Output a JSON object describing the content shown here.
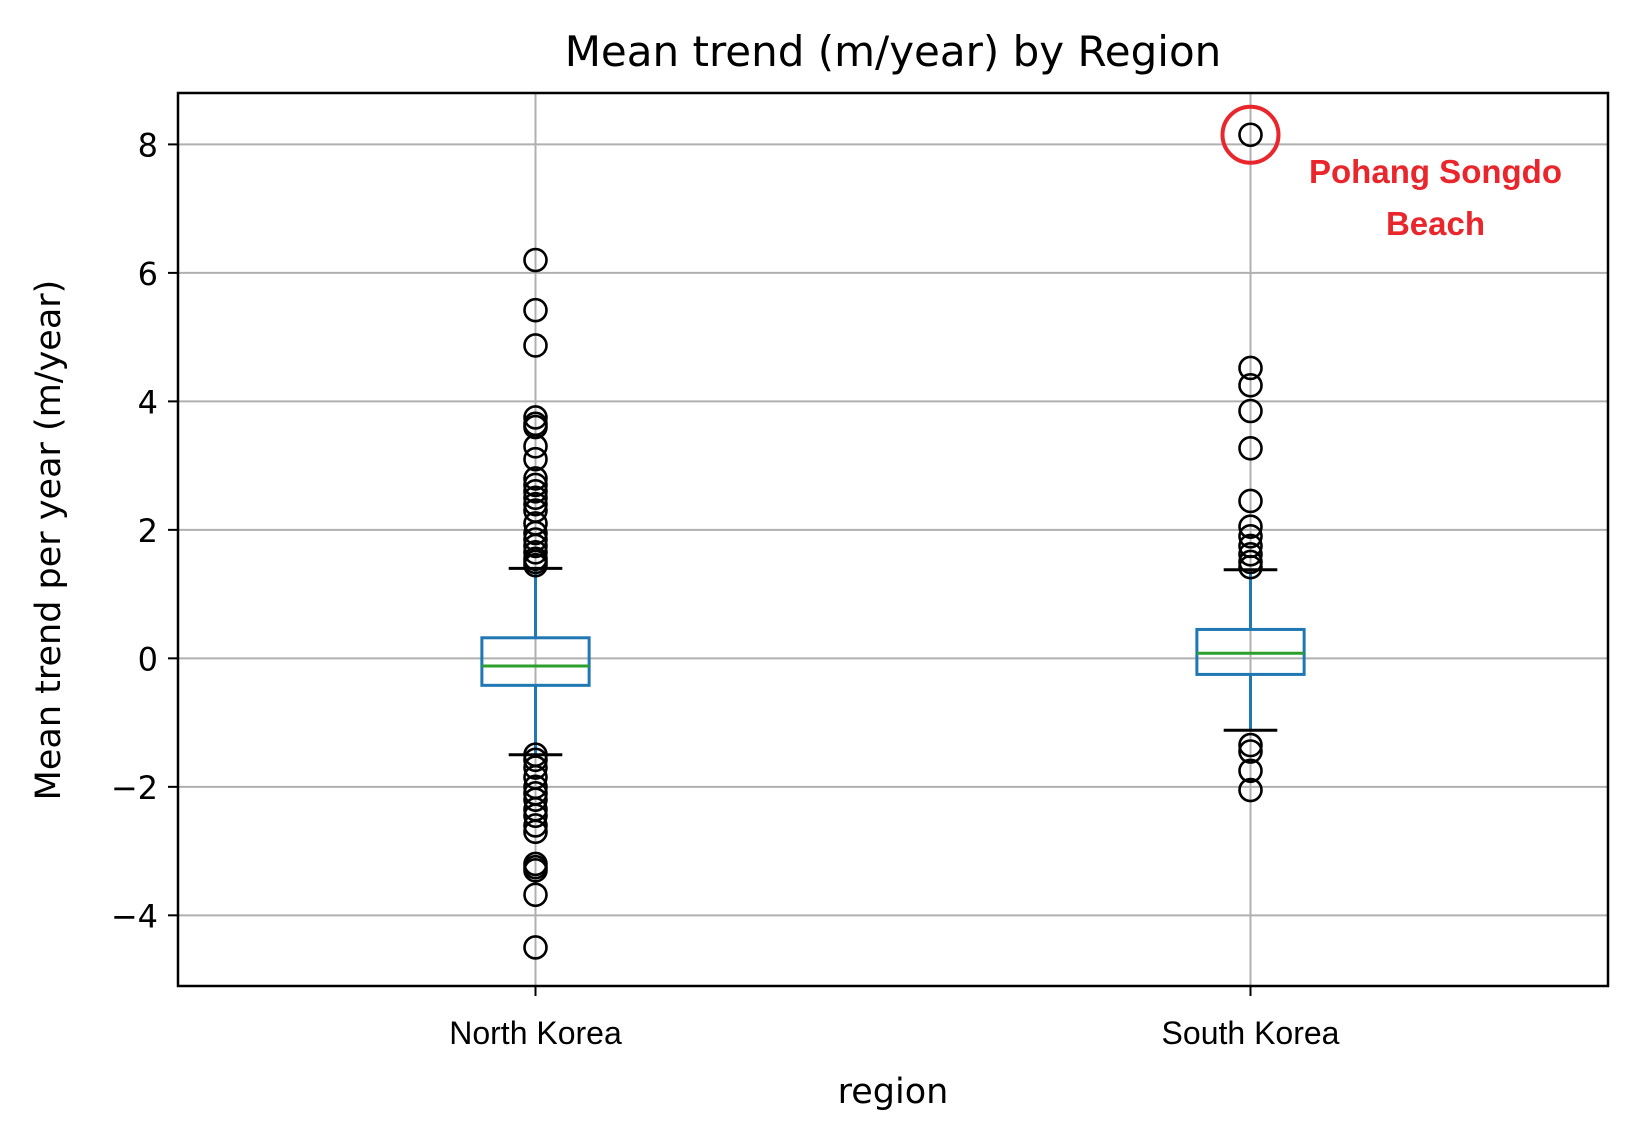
{
  "chart_data": {
    "type": "box",
    "title": "Mean trend (m/year) by Region",
    "xlabel": "region",
    "ylabel": "Mean trend per year (m/year)",
    "ylim": [
      -5.1,
      8.8
    ],
    "yticks": [
      -4,
      -2,
      0,
      2,
      4,
      6,
      8
    ],
    "ytick_labels": [
      "−4",
      "−2",
      "0",
      "2",
      "4",
      "6",
      "8"
    ],
    "grid": true,
    "categories": [
      "North Korea",
      "South Korea"
    ],
    "boxes": [
      {
        "name": "North Korea",
        "q1": -0.42,
        "median": -0.12,
        "q3": 0.32,
        "whisker_low": -1.5,
        "whisker_high": 1.4,
        "outliers": [
          6.2,
          5.42,
          4.87,
          3.75,
          3.65,
          3.6,
          3.3,
          3.1,
          2.8,
          2.7,
          2.6,
          2.5,
          2.4,
          2.3,
          2.1,
          1.95,
          1.85,
          1.75,
          1.65,
          1.55,
          1.5,
          1.45,
          -1.5,
          -1.58,
          -1.7,
          -1.85,
          -2.0,
          -2.1,
          -2.2,
          -2.35,
          -2.45,
          -2.6,
          -2.7,
          -3.2,
          -3.25,
          -3.3,
          -3.68,
          -4.5
        ]
      },
      {
        "name": "South Korea",
        "q1": -0.25,
        "median": 0.08,
        "q3": 0.45,
        "whisker_low": -1.12,
        "whisker_high": 1.38,
        "outliers": [
          8.15,
          4.52,
          4.25,
          3.85,
          3.27,
          2.45,
          2.05,
          1.9,
          1.75,
          1.62,
          1.5,
          1.42,
          -1.35,
          -1.45,
          -1.75,
          -2.05
        ]
      }
    ],
    "annotations": [
      {
        "text_lines": [
          "Pohang  Songdo",
          "Beach"
        ],
        "category": "South Korea",
        "value": 8.15,
        "marker": "circle"
      }
    ],
    "colors": {
      "box": "#1f77b4",
      "median": "#2ca02c",
      "flier": "#000000",
      "grid": "#b0b0b0",
      "annotation": "#e8262b"
    }
  }
}
